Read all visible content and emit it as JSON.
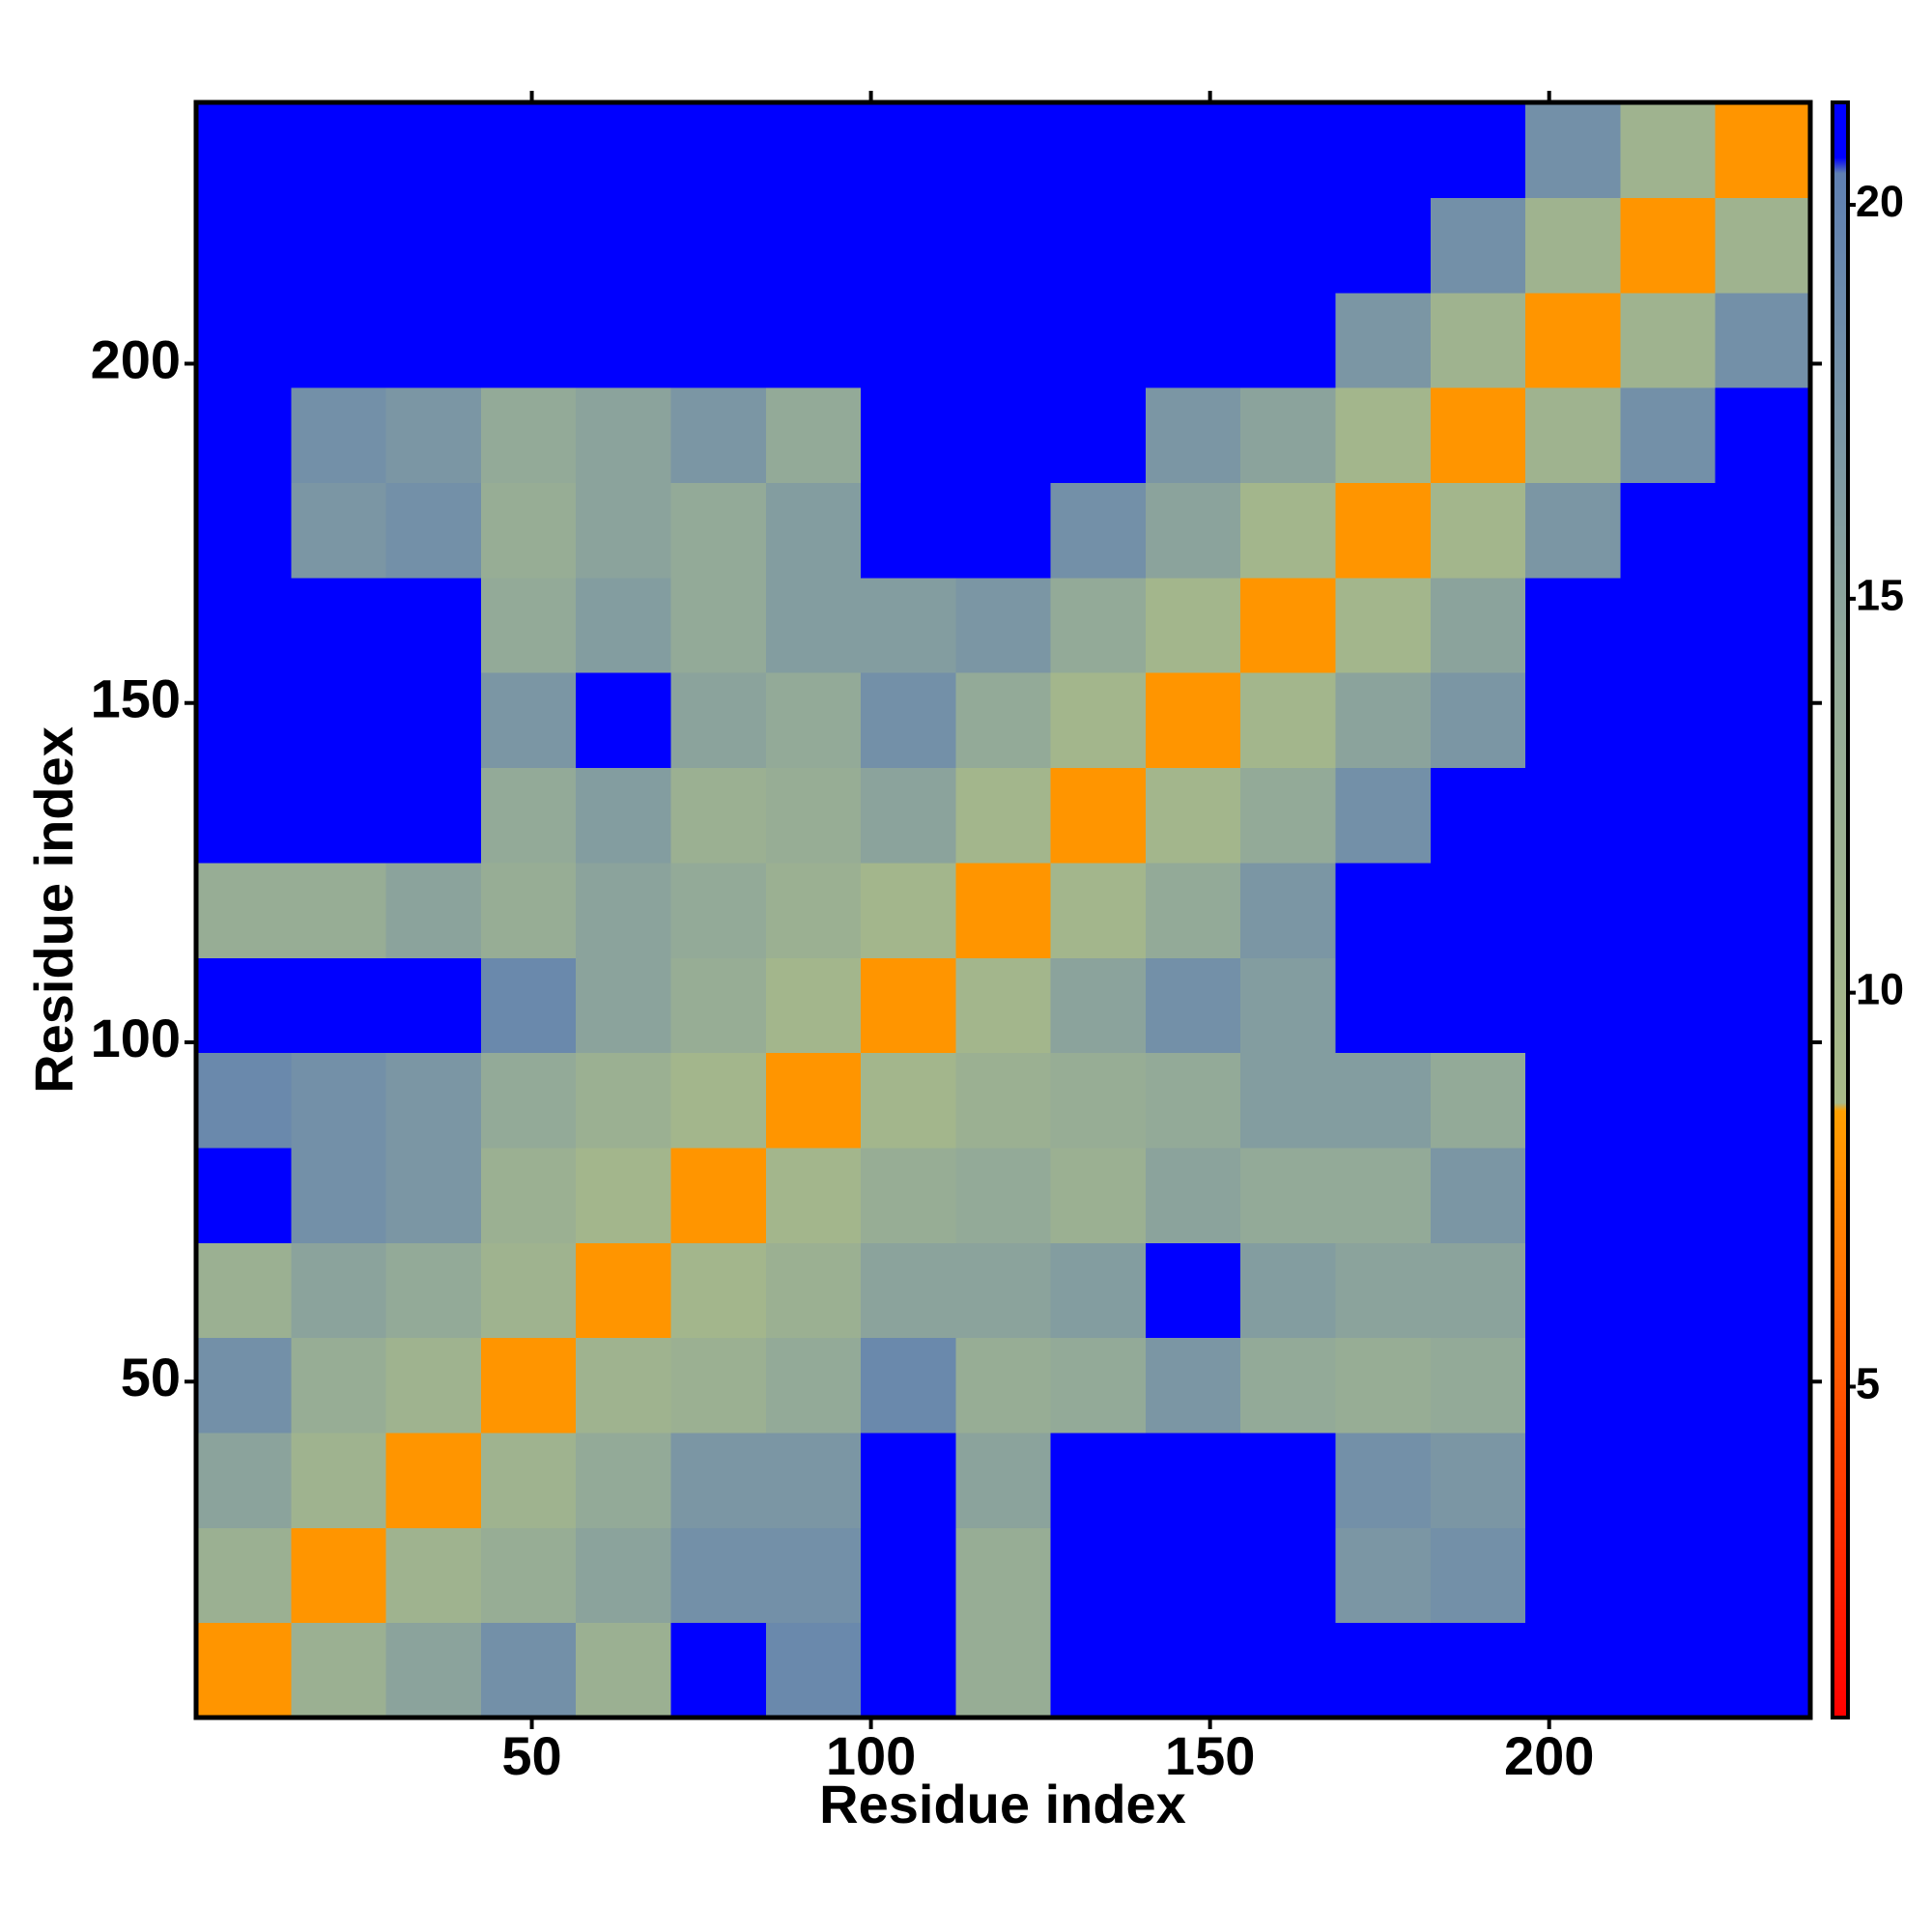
{
  "chart_data": {
    "type": "heatmap",
    "x_label": "Residue index",
    "y_label": "Residue index",
    "xlim": [
      0.5,
      238.5
    ],
    "ylim": [
      0.5,
      238.5
    ],
    "xticks": [
      50,
      100,
      150,
      200
    ],
    "yticks": [
      50,
      100,
      150,
      200
    ],
    "xbins": [
      0.5,
      14.5,
      28.5,
      42.5,
      56.5,
      70.5,
      84.5,
      98.5,
      112.5,
      126.5,
      140.5,
      154.5,
      168.5,
      182.5,
      196.5,
      210.5,
      224.5,
      238.5
    ],
    "ybins": [
      0.5,
      14.5,
      28.5,
      42.5,
      56.5,
      70.5,
      84.5,
      98.5,
      112.5,
      126.5,
      140.5,
      154.5,
      168.5,
      182.5,
      196.5,
      210.5,
      224.5,
      238.5
    ],
    "values": [
      [
        8,
        12,
        15,
        18,
        12,
        21.3,
        19,
        21.3,
        13,
        21.3,
        21.3,
        21.3,
        21.3,
        21.3,
        21.3,
        21.3,
        21.3
      ],
      [
        12,
        8,
        11,
        13,
        15,
        18,
        18,
        21.3,
        13,
        21.3,
        21.3,
        21.3,
        17,
        18,
        21.3,
        21.3,
        21.3
      ],
      [
        15,
        11,
        8,
        11,
        14,
        17,
        17,
        21.3,
        15,
        21.3,
        21.3,
        21.3,
        18,
        17,
        21.3,
        21.3,
        21.3
      ],
      [
        18,
        13,
        11,
        8,
        11,
        12,
        14,
        19,
        13,
        14,
        17,
        14,
        13,
        14,
        21.3,
        21.3,
        21.3
      ],
      [
        12,
        15,
        14,
        11,
        8,
        10,
        12,
        15,
        15,
        16,
        21.3,
        16,
        15,
        15,
        21.3,
        21.3,
        21.3
      ],
      [
        21.3,
        18,
        17,
        12,
        10,
        8,
        10,
        13,
        14,
        12,
        15,
        14,
        14,
        17,
        21.3,
        21.3,
        21.3
      ],
      [
        19,
        18,
        17,
        14,
        12,
        10,
        8,
        10,
        12,
        13,
        14,
        16,
        16,
        14,
        21.3,
        21.3,
        21.3
      ],
      [
        21.3,
        21.3,
        21.3,
        19,
        15,
        13,
        10,
        8,
        10,
        15,
        18,
        16,
        21.3,
        21.3,
        21.3,
        21.3,
        21.3
      ],
      [
        13,
        13,
        15,
        13,
        15,
        14,
        12,
        10,
        8,
        10,
        14,
        17,
        21.3,
        21.3,
        21.3,
        21.3,
        21.3
      ],
      [
        21.3,
        21.3,
        21.3,
        14,
        16,
        12,
        13,
        15,
        10,
        8,
        10,
        14,
        18,
        21.3,
        21.3,
        21.3,
        21.3
      ],
      [
        21.3,
        21.3,
        21.3,
        17,
        21.3,
        15,
        14,
        18,
        14,
        10,
        8,
        10,
        15,
        17,
        21.3,
        21.3,
        21.3
      ],
      [
        21.3,
        21.3,
        21.3,
        14,
        16,
        14,
        16,
        16,
        17,
        14,
        10,
        8,
        10,
        15,
        21.3,
        21.3,
        21.3
      ],
      [
        21.3,
        17,
        18,
        13,
        15,
        14,
        16,
        21.3,
        21.3,
        18,
        15,
        10,
        8,
        10,
        17,
        21.3,
        21.3
      ],
      [
        21.3,
        18,
        17,
        14,
        15,
        17,
        14,
        21.3,
        21.3,
        21.3,
        17,
        15,
        10,
        8,
        11,
        18,
        21.3
      ],
      [
        21.3,
        21.3,
        21.3,
        21.3,
        21.3,
        21.3,
        21.3,
        21.3,
        21.3,
        21.3,
        21.3,
        21.3,
        17,
        11,
        8,
        11,
        18
      ],
      [
        21.3,
        21.3,
        21.3,
        21.3,
        21.3,
        21.3,
        21.3,
        21.3,
        21.3,
        21.3,
        21.3,
        21.3,
        21.3,
        18,
        11,
        8,
        11
      ],
      [
        21.3,
        21.3,
        21.3,
        21.3,
        21.3,
        21.3,
        21.3,
        21.3,
        21.3,
        21.3,
        21.3,
        21.3,
        21.3,
        21.3,
        18,
        11,
        8
      ]
    ],
    "clim": [
      0.8,
      21.3
    ],
    "cticks": [
      5,
      10,
      15,
      20
    ],
    "colorscale": [
      [
        0.8,
        "#ff0000"
      ],
      [
        4.5,
        "#ff4a00"
      ],
      [
        8.5,
        "#ffa000"
      ],
      [
        8.6,
        "#a9ba88"
      ],
      [
        14,
        "#93aa98"
      ],
      [
        20.4,
        "#5f80b2"
      ],
      [
        20.6,
        "#0000ff"
      ],
      [
        21.3,
        "#0000ff"
      ]
    ]
  }
}
